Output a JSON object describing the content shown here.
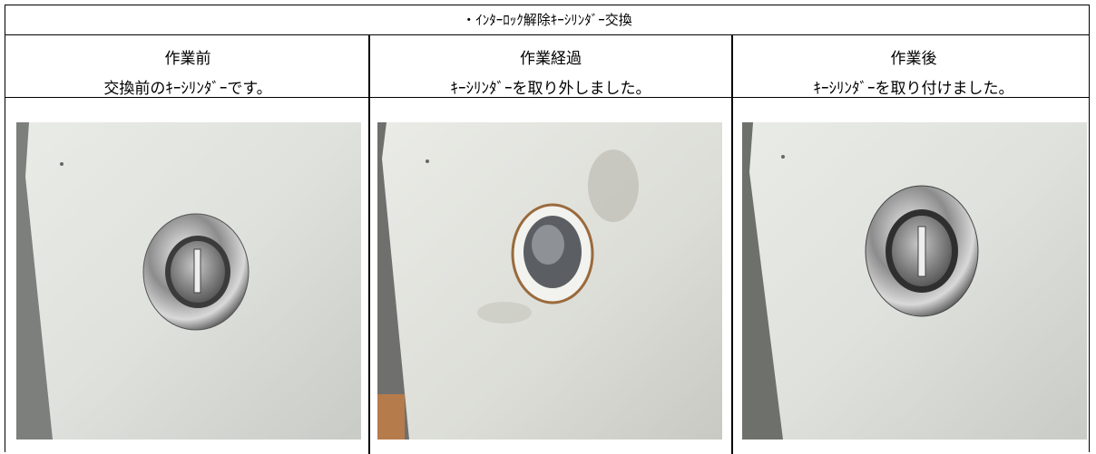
{
  "title": "・ｲﾝﾀｰﾛｯｸ解除ｷｰｼﾘﾝﾀﾞｰ交換",
  "columns": [
    {
      "heading": "作業前",
      "caption": "交換前のｷｰｼﾘﾝﾀﾞｰです。"
    },
    {
      "heading": "作業経過",
      "caption": "ｷｰｼﾘﾝﾀﾞｰを取り外しました。"
    },
    {
      "heading": "作業後",
      "caption": "ｷｰｼﾘﾝﾀﾞｰを取り付けました。"
    }
  ]
}
